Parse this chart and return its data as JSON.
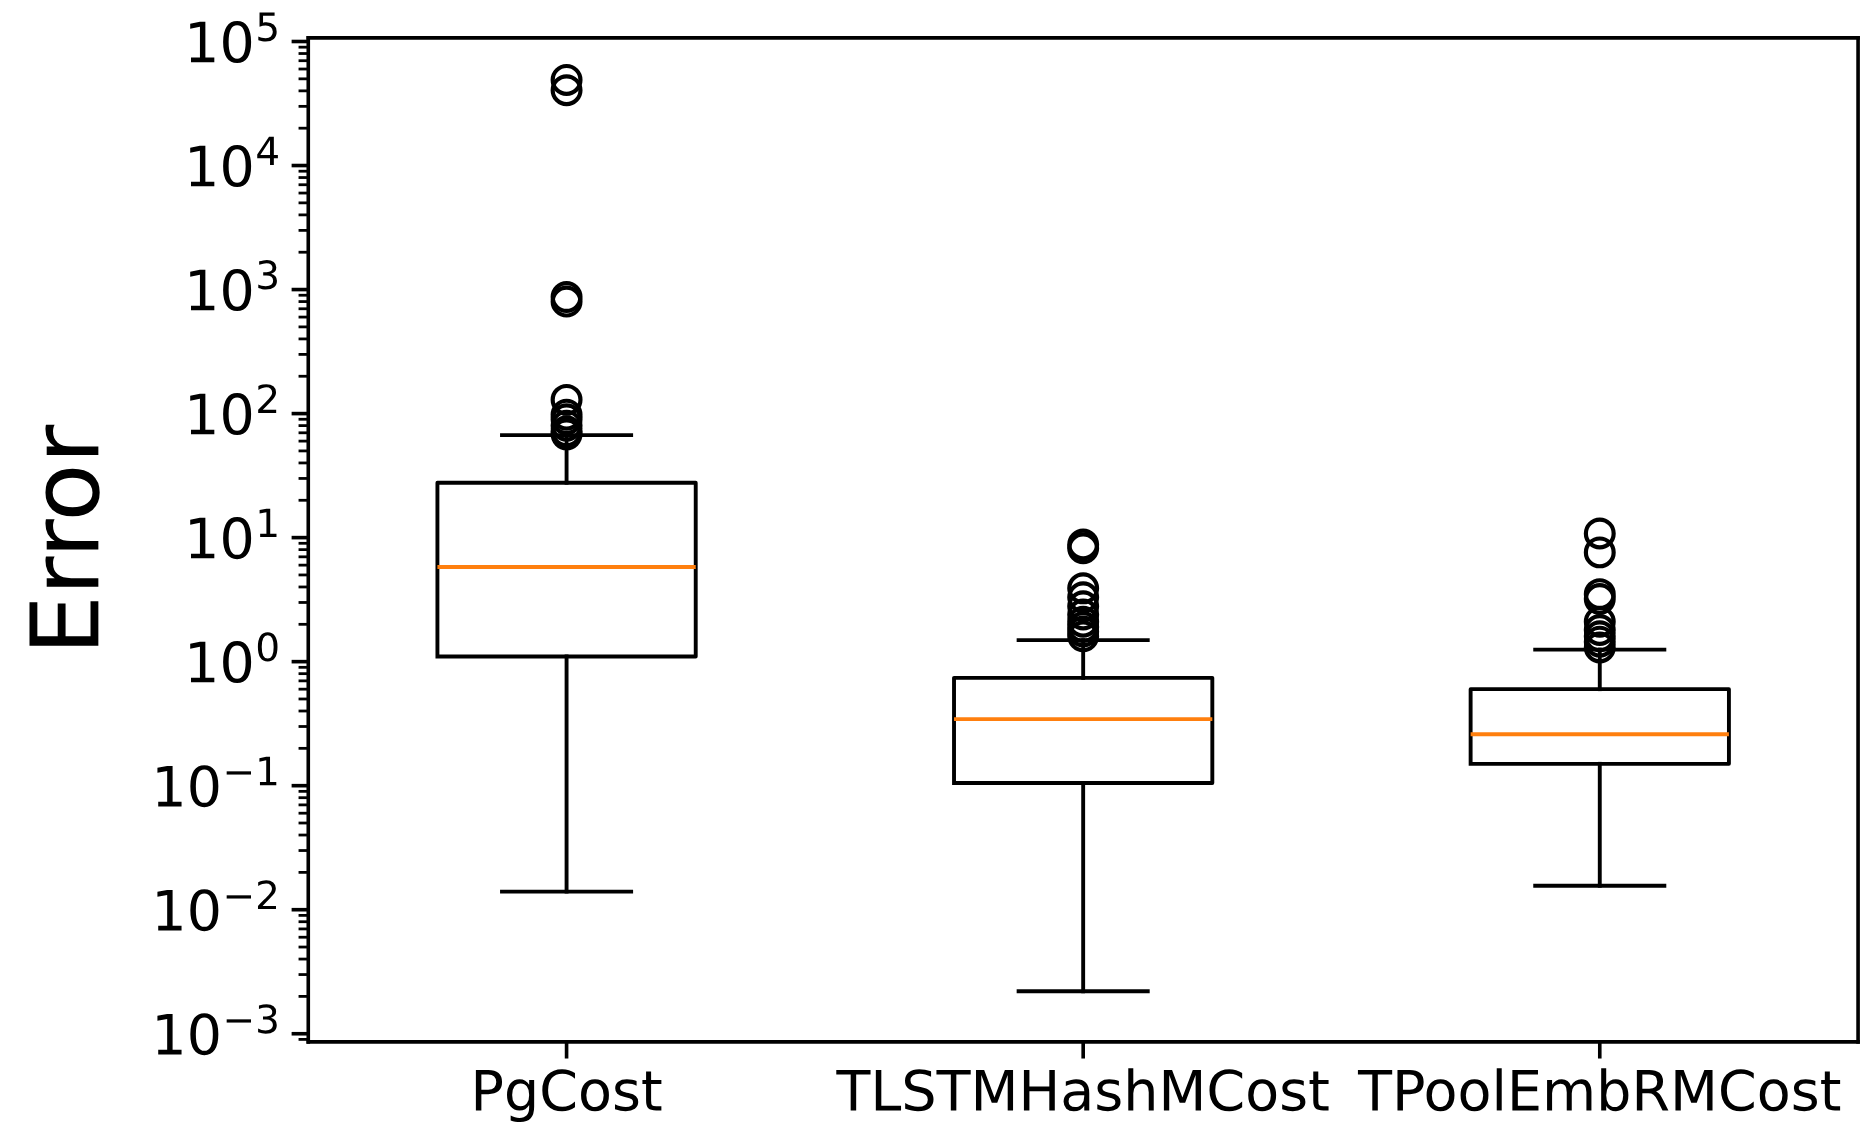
{
  "chart_data": {
    "type": "box",
    "ylabel": "Error",
    "categories": [
      "PgCost",
      "TLSTMHashMCost",
      "TPoolEmbRMCost"
    ],
    "boxes": [
      {
        "low": 0.014,
        "q1": 1.1,
        "median": 5.8,
        "q3": 27.7,
        "high": 67,
        "outliers": [
          68,
          72,
          80,
          90,
          98,
          129,
          800,
          870,
          40500,
          49000
        ]
      },
      {
        "low": 0.0022,
        "q1": 0.105,
        "median": 0.344,
        "q3": 0.74,
        "high": 1.49,
        "outliers": [
          1.6,
          1.75,
          1.9,
          2.1,
          2.4,
          2.8,
          3.3,
          3.9,
          8.2,
          8.8
        ]
      },
      {
        "low": 0.0156,
        "q1": 0.15,
        "median": 0.26,
        "q3": 0.6,
        "high": 1.25,
        "outliers": [
          1.3,
          1.45,
          1.6,
          1.8,
          2.1,
          3.2,
          3.5,
          7.6,
          10.8
        ]
      }
    ],
    "log": true,
    "ylim": [
      0.00086,
      107000
    ],
    "yticks": [
      {
        "value": 0.001,
        "label": "10$^{−3}$"
      },
      {
        "value": 0.01,
        "label": "10$^{−2}$"
      },
      {
        "value": 0.1,
        "label": "10$^{−1}$"
      },
      {
        "value": 1,
        "label": "10$^{0}$"
      },
      {
        "value": 10,
        "label": "10$^{1}$"
      },
      {
        "value": 100,
        "label": "10$^{2}$"
      },
      {
        "value": 1000,
        "label": "10$^{3}$"
      },
      {
        "value": 10000,
        "label": "10$^{4}$"
      },
      {
        "value": 100000,
        "label": "10$^{5}$"
      }
    ],
    "marker": "circle"
  }
}
